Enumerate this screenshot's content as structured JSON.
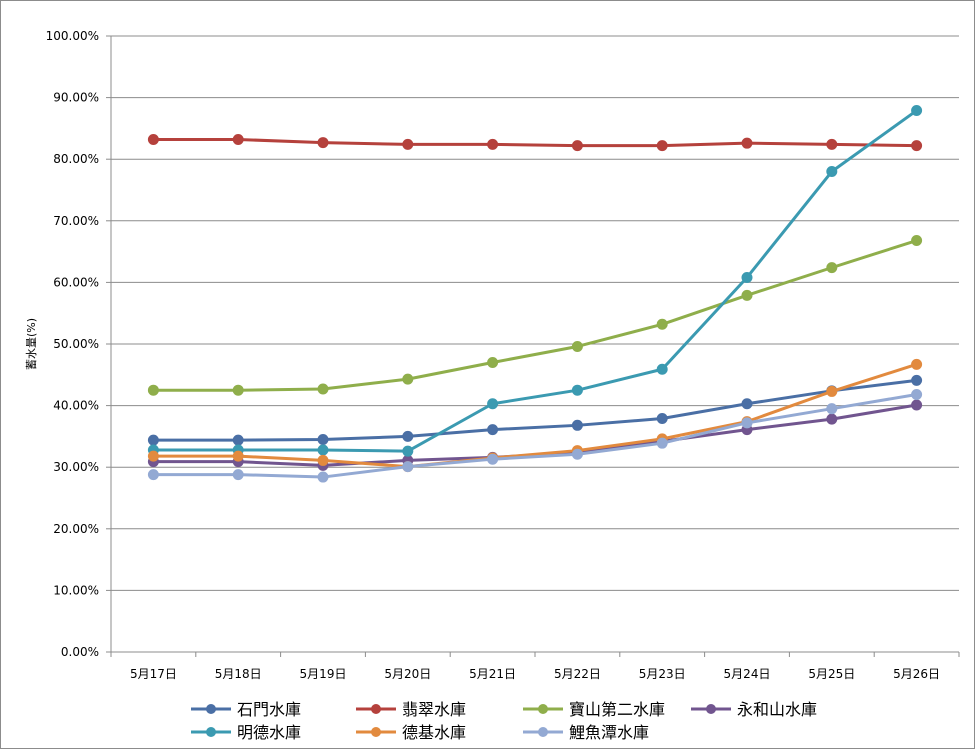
{
  "chart_data": {
    "type": "line",
    "title": "",
    "xlabel": "",
    "ylabel": "蓄水量(%)",
    "ylim": [
      0,
      100
    ],
    "yticks": [
      "0.00%",
      "10.00%",
      "20.00%",
      "30.00%",
      "40.00%",
      "50.00%",
      "60.00%",
      "70.00%",
      "80.00%",
      "90.00%",
      "100.00%"
    ],
    "grid": "horizontal",
    "legend": "bottom",
    "categories": [
      "5月17日",
      "5月18日",
      "5月19日",
      "5月20日",
      "5月21日",
      "5月22日",
      "5月23日",
      "5月24日",
      "5月25日",
      "5月26日"
    ],
    "series": [
      {
        "name": "石門水庫",
        "color": "#4a6fa5",
        "values": [
          34.4,
          34.4,
          34.5,
          35.0,
          36.1,
          36.8,
          37.9,
          40.3,
          42.4,
          44.1
        ]
      },
      {
        "name": "翡翠水庫",
        "color": "#b5413c",
        "values": [
          83.2,
          83.2,
          82.7,
          82.4,
          82.4,
          82.2,
          82.2,
          82.6,
          82.4,
          82.2
        ]
      },
      {
        "name": "寶山第二水庫",
        "color": "#8fae4b",
        "values": [
          42.5,
          42.5,
          42.7,
          44.3,
          47.0,
          49.6,
          53.2,
          57.9,
          62.4,
          66.8
        ]
      },
      {
        "name": "永和山水庫",
        "color": "#71558f",
        "values": [
          30.9,
          30.9,
          30.3,
          31.1,
          31.6,
          32.3,
          34.2,
          36.1,
          37.8,
          40.1
        ]
      },
      {
        "name": "明德水庫",
        "color": "#3b9ab1",
        "values": [
          32.8,
          32.8,
          32.8,
          32.6,
          40.3,
          42.5,
          45.9,
          60.8,
          78.0,
          87.9
        ]
      },
      {
        "name": "德基水庫",
        "color": "#e28a3e",
        "values": [
          31.8,
          31.8,
          31.1,
          30.1,
          31.5,
          32.7,
          34.6,
          37.4,
          42.3,
          46.7
        ]
      },
      {
        "name": "鯉魚潭水庫",
        "color": "#93a9d3",
        "values": [
          28.8,
          28.8,
          28.4,
          30.1,
          31.3,
          32.1,
          33.9,
          37.2,
          39.5,
          41.8
        ]
      }
    ]
  }
}
